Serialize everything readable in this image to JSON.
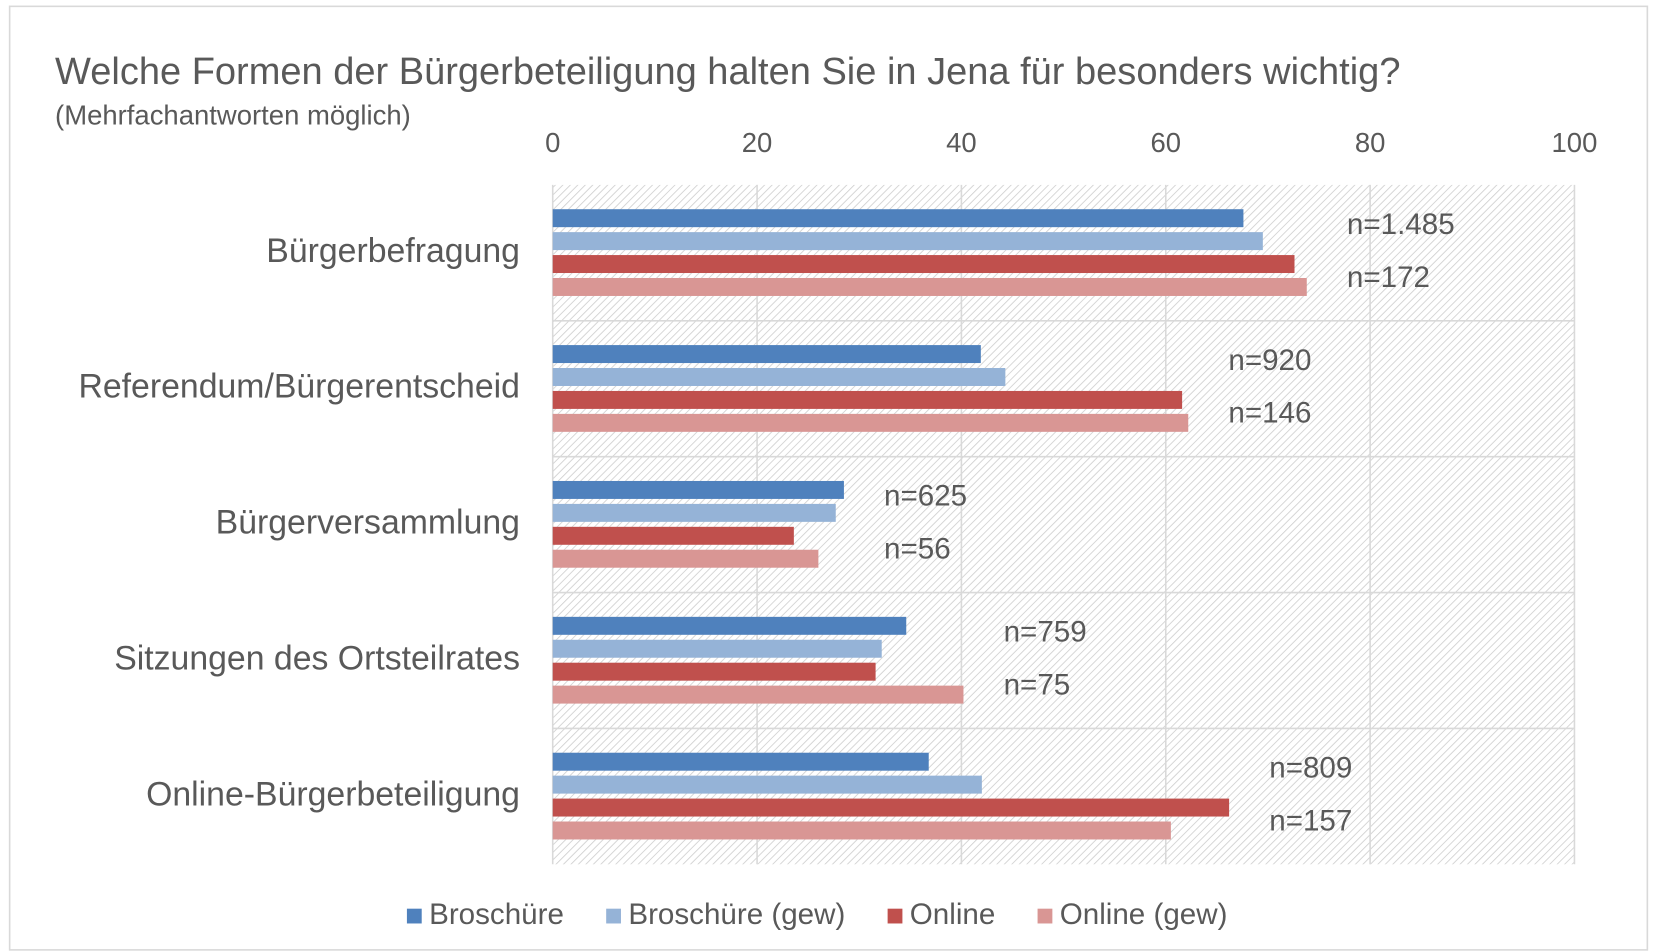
{
  "chart_data": {
    "type": "bar",
    "orientation": "horizontal",
    "title": "Welche Formen der Bürgerbeteiligung halten Sie in Jena für besonders wichtig?",
    "subtitle": "(Mehrfachantworten möglich)",
    "categories": [
      "Bürgerbefragung",
      "Referendum/Bürgerentscheid",
      "Bürgerversammlung",
      "Sitzungen des Ortsteilrates",
      "Online-Bürgerbeteiligung"
    ],
    "series": [
      {
        "name": "Broschüre",
        "color": "#4f81bd",
        "values": [
          67.6,
          41.9,
          28.5,
          34.6,
          36.8
        ]
      },
      {
        "name": "Broschüre (gew)",
        "color": "#95b3d7",
        "values": [
          69.5,
          44.3,
          27.7,
          32.2,
          42.0
        ]
      },
      {
        "name": "Online",
        "color": "#c0504d",
        "values": [
          72.6,
          61.6,
          23.6,
          31.6,
          66.2
        ]
      },
      {
        "name": "Online (gew)",
        "color": "#d99694",
        "values": [
          73.8,
          62.2,
          26.0,
          40.2,
          60.5
        ]
      }
    ],
    "annotations": [
      [
        "n=1.485",
        "n=172"
      ],
      [
        "n=920",
        "n=146"
      ],
      [
        "n=625",
        "n=56"
      ],
      [
        "n=759",
        "n=75"
      ],
      [
        "n=809",
        "n=157"
      ]
    ],
    "xlim": [
      0,
      100
    ],
    "xticks": [
      0,
      20,
      40,
      60,
      80,
      100
    ],
    "grid": true,
    "legend": "bottom"
  }
}
